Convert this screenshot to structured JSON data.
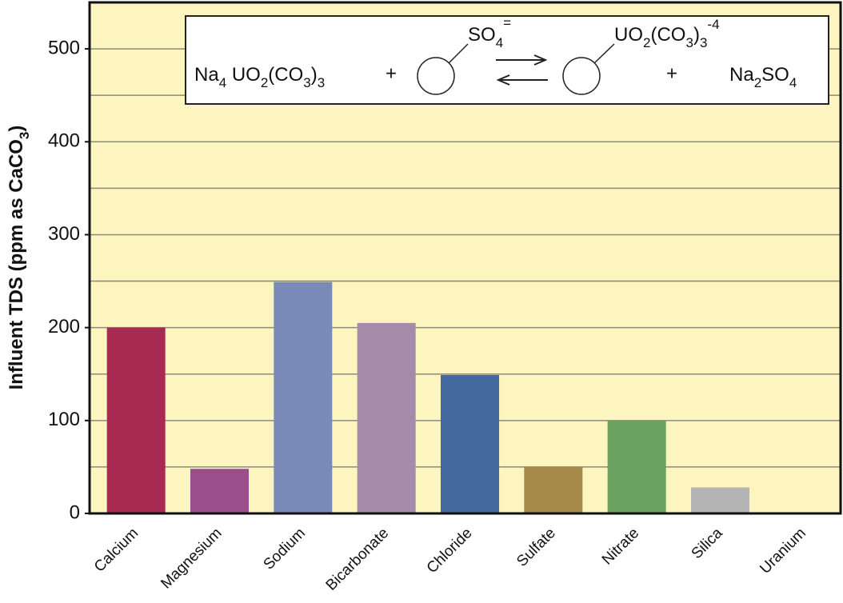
{
  "chart_data": {
    "type": "bar",
    "y_label": [
      "Influent TDS (ppm as CaCO",
      "3",
      ")"
    ],
    "categories": [
      "Calcium",
      "Magnesium",
      "Sodium",
      "Bicarbonate",
      "Chloride",
      "Sulfate",
      "Nitrate",
      "Silica",
      "Uranium"
    ],
    "values": [
      200,
      48,
      249,
      205,
      149,
      50,
      100,
      28,
      0
    ],
    "colors": [
      "#a82a52",
      "#9c4e8c",
      "#7a8ab8",
      "#a68aaa",
      "#4468a0",
      "#a68a4c",
      "#6aa060",
      "#b4b4b4",
      "#888888"
    ],
    "ylim": [
      0,
      550
    ],
    "yticks": [
      0,
      100,
      200,
      300,
      400,
      500
    ],
    "minor_grid": [
      50,
      150,
      250,
      350,
      450
    ],
    "grid": true,
    "annotation": {
      "reactant": [
        "Na",
        "4",
        " UO",
        "2",
        "(CO",
        "3",
        ")",
        "3"
      ],
      "plus1": "+",
      "ion": [
        "SO",
        "4",
        "="
      ],
      "product_ion": [
        "UO",
        "2",
        "(CO",
        "3",
        ")",
        "3",
        "-4"
      ],
      "plus2": "+",
      "product": [
        "Na",
        "2",
        "SO",
        "4"
      ]
    }
  }
}
